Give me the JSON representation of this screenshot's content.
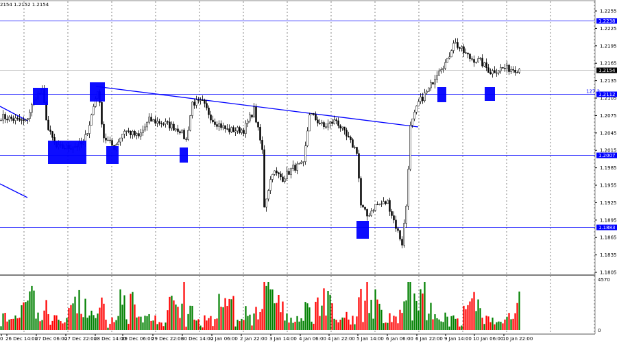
{
  "header": {
    "ohlc_text": "2154 1.2152 1.2154"
  },
  "chart_data": {
    "type": "candlestick",
    "symbol_timeframe_note": "",
    "price_axis": {
      "ticks": [
        "1.2255",
        "1.2225",
        "1.2195",
        "1.2165",
        "1.2135",
        "1.2105",
        "1.2075",
        "1.2045",
        "1.2015",
        "1.1985",
        "1.1955",
        "1.1925",
        "1.1895",
        "1.1865",
        "1.1835",
        "1.1805"
      ],
      "range": [
        1.1805,
        1.2255
      ]
    },
    "time_axis": {
      "ticks": [
        "0",
        "26 Dec 14:00",
        "27 Dec 06:00",
        "27 Dec 22:00",
        "28 Dec 14:00",
        "29 Dec 06:00",
        "29 Dec 22:00",
        "30 Dec 14:00",
        "2 Jan 06:00",
        "2 Jan 22:00",
        "3 Jan 14:00",
        "4 Jan 06:00",
        "4 Jan 22:00",
        "5 Jan 14:00",
        "6 Jan 06:00",
        "6 Jan 22:00",
        "9 Jan 14:00",
        "10 Jan 06:00",
        "10 Jan 22:00"
      ]
    },
    "price_path": [
      [
        0,
        1.2073
      ],
      [
        12,
        1.2064
      ],
      [
        17,
        1.2109
      ],
      [
        20,
        1.2115
      ],
      [
        23,
        1.205
      ],
      [
        27,
        1.202
      ],
      [
        33,
        1.202
      ],
      [
        40,
        1.2026
      ],
      [
        43,
        1.2061
      ],
      [
        47,
        1.212
      ],
      [
        50,
        1.2038
      ],
      [
        55,
        1.202
      ],
      [
        60,
        1.205
      ],
      [
        67,
        1.2038
      ],
      [
        72,
        1.2067
      ],
      [
        80,
        1.2061
      ],
      [
        87,
        1.205
      ],
      [
        90,
        1.2032
      ],
      [
        93,
        1.2097
      ],
      [
        98,
        1.2097
      ],
      [
        103,
        1.2067
      ],
      [
        110,
        1.205
      ],
      [
        118,
        1.205
      ],
      [
        123,
        1.2085
      ],
      [
        127,
        1.2014
      ],
      [
        128,
        1.192
      ],
      [
        132,
        1.1979
      ],
      [
        137,
        1.1967
      ],
      [
        142,
        1.1985
      ],
      [
        147,
        1.199
      ],
      [
        150,
        1.2079
      ],
      [
        157,
        1.2055
      ],
      [
        163,
        1.2067
      ],
      [
        168,
        1.2038
      ],
      [
        173,
        1.2014
      ],
      [
        175,
        1.192
      ],
      [
        178,
        1.1902
      ],
      [
        182,
        1.192
      ],
      [
        188,
        1.1926
      ],
      [
        192,
        1.1884
      ],
      [
        195,
        1.1855
      ],
      [
        197,
        1.192
      ],
      [
        199,
        1.2055
      ],
      [
        203,
        1.2097
      ],
      [
        208,
        1.212
      ],
      [
        213,
        1.2156
      ],
      [
        217,
        1.2168
      ],
      [
        220,
        1.2203
      ],
      [
        223,
        1.2191
      ],
      [
        228,
        1.2174
      ],
      [
        233,
        1.2168
      ],
      [
        238,
        1.215
      ],
      [
        243,
        1.2156
      ],
      [
        252,
        1.2155
      ]
    ],
    "levels": [
      {
        "price": 1.2238,
        "label": "1.2238",
        "color": "#0000ff"
      },
      {
        "price": 1.2112,
        "label": "1.2112",
        "color": "#0000ff",
        "note": "127.2"
      },
      {
        "price": 1.2007,
        "label": "1.2007",
        "color": "#0000ff"
      },
      {
        "price": 1.1883,
        "label": "1.1883",
        "color": "#0000ff"
      }
    ],
    "current_price": {
      "price": 1.2154,
      "label": "1.2154"
    },
    "volume_axis": {
      "max_label": "4570",
      "min_label": "0"
    },
    "colors": {
      "bull": "#008000",
      "bear": "#ff0000",
      "candle": "#000000",
      "level": "#0000ff",
      "marker": "#0000ff"
    }
  }
}
